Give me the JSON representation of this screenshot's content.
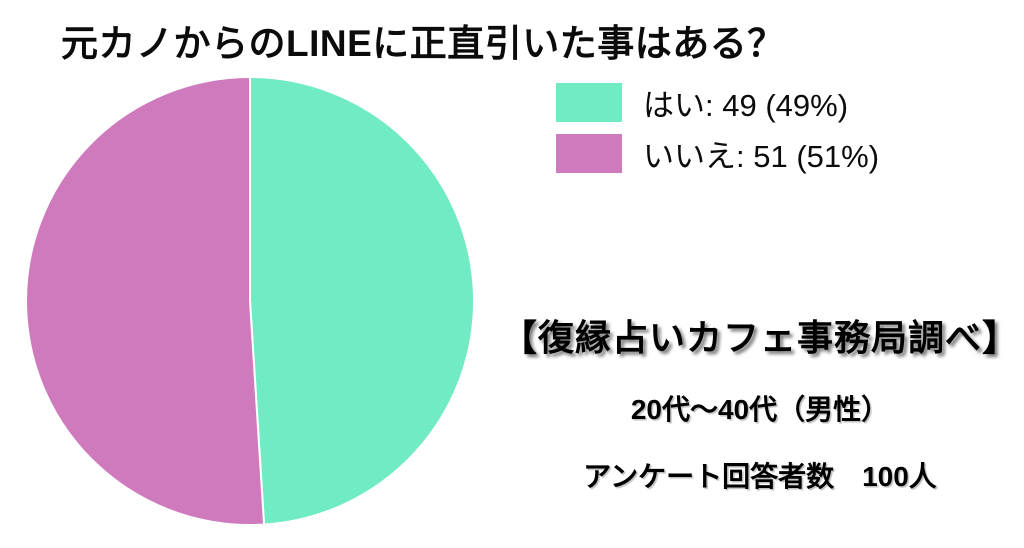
{
  "page": {
    "title": "元カノからのLINEに正直引いた事はある？"
  },
  "chart_data": {
    "type": "pie",
    "title": "元カノからのLINEに正直引いた事はある？",
    "labels": [
      "はい",
      "いいえ"
    ],
    "values": [
      49,
      51
    ],
    "percents": [
      49,
      51
    ],
    "total": 100,
    "colors": [
      "#70EBC3",
      "#CE7ABC"
    ],
    "start_angle_deg": 0,
    "direction": "clockwise",
    "slice_border_color": "#ffffff",
    "legend_position": "top-right",
    "legend": [
      {
        "text": "はい: 49 (49%)",
        "color": "#70EBC3"
      },
      {
        "text": "いいえ: 51 (51%)",
        "color": "#CE7ABC"
      }
    ]
  },
  "notes": {
    "source": "【復縁占いカフェ事務局調べ】",
    "demographic": "20代〜40代（男性）",
    "respondents": "アンケート回答者数　100人"
  }
}
